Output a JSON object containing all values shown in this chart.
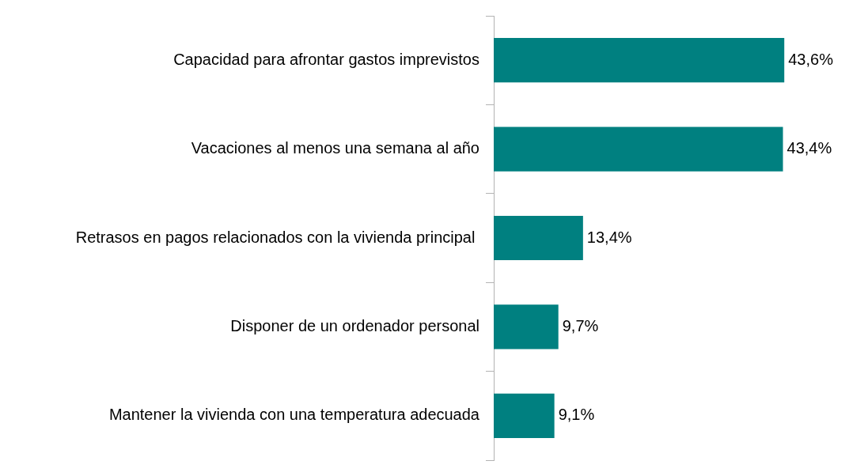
{
  "chart_data": {
    "type": "bar",
    "orientation": "horizontal",
    "categories": [
      "Capacidad para afrontar gastos imprevistos",
      "Vacaciones al menos una semana al año",
      "Retrasos en pagos relacionados con la vivienda principal ",
      "Disponer de un ordenador personal",
      "Mantener la vivienda con una temperatura adecuada"
    ],
    "values": [
      43.6,
      43.4,
      13.4,
      9.7,
      9.1
    ],
    "value_labels": [
      "43,6%",
      "43,4%",
      "13,4%",
      "9,7%",
      "9,1%"
    ],
    "color": "#008080",
    "tick_labels": "y"
  }
}
